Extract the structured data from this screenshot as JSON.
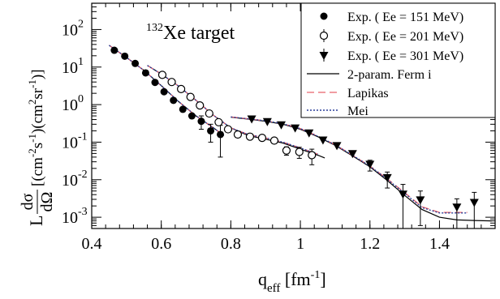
{
  "chart_data": {
    "type": "scatter",
    "annotation": {
      "mass": "132",
      "text": "Xe target"
    },
    "xlabel": {
      "main": "q",
      "sub": "eff",
      "unit_open": " [fm",
      "unit_sup": "-1",
      "unit_close": "]"
    },
    "ylabel": {
      "prefix": "L",
      "frac_num": "dσ",
      "frac_den": "dΩ",
      "p1": " [(cm",
      "s1": "-2",
      "p2": "s",
      "s2": "-1",
      "p3": ")(cm",
      "s3": "2",
      "p4": "sr",
      "s4": "-1",
      "p5": ")]"
    },
    "xlim": [
      0.4,
      1.56
    ],
    "ylim_log10": [
      -3.3,
      2.7
    ],
    "y_scale": "log",
    "x_ticks": [
      {
        "v": 0.4,
        "label": "0.4"
      },
      {
        "v": 0.6,
        "label": "0.6"
      },
      {
        "v": 0.8,
        "label": "0.8"
      },
      {
        "v": 1.0,
        "label": "1"
      },
      {
        "v": 1.2,
        "label": "1.2"
      },
      {
        "v": 1.4,
        "label": "1.4"
      }
    ],
    "y_ticks": [
      {
        "exp": 2,
        "base": "10",
        "sup": "2"
      },
      {
        "exp": 1,
        "base": "10",
        "sup": "1"
      },
      {
        "exp": 0,
        "base": "10",
        "sup": "0"
      },
      {
        "exp": -1,
        "base": "10",
        "sup": "-1"
      },
      {
        "exp": -2,
        "base": "10",
        "sup": "-2"
      },
      {
        "exp": -3,
        "base": "10",
        "sup": "-3"
      }
    ],
    "grid": false,
    "legend_position": "top-right",
    "series": [
      {
        "name": "Exp. ( Ee = 151 MeV)",
        "marker": "filled-circle",
        "points": [
          {
            "x": 0.465,
            "y": 28,
            "err": 0
          },
          {
            "x": 0.495,
            "y": 19.5,
            "err": 0
          },
          {
            "x": 0.525,
            "y": 12.5,
            "err": 0
          },
          {
            "x": 0.555,
            "y": 7.0,
            "err": 0
          },
          {
            "x": 0.582,
            "y": 3.9,
            "err": 0
          },
          {
            "x": 0.608,
            "y": 2.2,
            "err": 0
          },
          {
            "x": 0.635,
            "y": 1.3,
            "err": 0
          },
          {
            "x": 0.662,
            "y": 0.75,
            "err": 0
          },
          {
            "x": 0.688,
            "y": 0.5,
            "err": 0
          },
          {
            "x": 0.715,
            "y": 0.36,
            "err": 0.14
          },
          {
            "x": 0.742,
            "y": 0.2,
            "err": 0.1
          },
          {
            "x": 0.77,
            "y": 0.16,
            "err": 0.12
          }
        ]
      },
      {
        "name": "Exp. ( Ee = 201 MeV)",
        "marker": "open-circle",
        "points": [
          {
            "x": 0.603,
            "y": 6.2,
            "err": 0
          },
          {
            "x": 0.63,
            "y": 4.0,
            "err": 0
          },
          {
            "x": 0.657,
            "y": 2.6,
            "err": 0
          },
          {
            "x": 0.684,
            "y": 1.6,
            "err": 0
          },
          {
            "x": 0.711,
            "y": 0.95,
            "err": 0
          },
          {
            "x": 0.738,
            "y": 0.58,
            "err": 0
          },
          {
            "x": 0.765,
            "y": 0.34,
            "err": 0
          },
          {
            "x": 0.792,
            "y": 0.22,
            "err": 0
          },
          {
            "x": 0.82,
            "y": 0.16,
            "err": 0
          },
          {
            "x": 0.855,
            "y": 0.14,
            "err": 0
          },
          {
            "x": 0.89,
            "y": 0.13,
            "err": 0
          },
          {
            "x": 0.925,
            "y": 0.11,
            "err": 0
          },
          {
            "x": 0.96,
            "y": 0.06,
            "err": 0.015
          },
          {
            "x": 0.997,
            "y": 0.055,
            "err": 0.018
          },
          {
            "x": 1.033,
            "y": 0.045,
            "err": 0.02
          }
        ]
      },
      {
        "name": "Exp. ( Ee = 301 MeV)",
        "marker": "filled-triangle-down",
        "points": [
          {
            "x": 0.86,
            "y": 0.4,
            "err": 0
          },
          {
            "x": 0.905,
            "y": 0.34,
            "err": 0
          },
          {
            "x": 0.945,
            "y": 0.28,
            "err": 0
          },
          {
            "x": 0.985,
            "y": 0.23,
            "err": 0
          },
          {
            "x": 1.025,
            "y": 0.17,
            "err": 0
          },
          {
            "x": 1.065,
            "y": 0.11,
            "err": 0
          },
          {
            "x": 1.105,
            "y": 0.078,
            "err": 0
          },
          {
            "x": 1.15,
            "y": 0.048,
            "err": 0
          },
          {
            "x": 1.2,
            "y": 0.025,
            "err": 0.008
          },
          {
            "x": 1.25,
            "y": 0.011,
            "err": 0.005
          },
          {
            "x": 1.295,
            "y": 0.004,
            "err": 0.0035
          },
          {
            "x": 1.345,
            "y": 0.0028,
            "err": 0.0022
          },
          {
            "x": 1.45,
            "y": 0.0018,
            "err": 0.0013
          },
          {
            "x": 1.5,
            "y": 0.0024,
            "err": 0.0022
          }
        ]
      }
    ],
    "curves": [
      {
        "name": "2-param. Ferm i",
        "color": "#000000",
        "dash": "",
        "segments": [
          [
            [
              0.45,
              38
            ],
            [
              0.5,
              18
            ],
            [
              0.55,
              8.2
            ],
            [
              0.6,
              3.2
            ],
            [
              0.65,
              1.2
            ],
            [
              0.7,
              0.5
            ],
            [
              0.75,
              0.24
            ],
            [
              0.78,
              0.15
            ]
          ],
          [
            [
              0.56,
              11
            ],
            [
              0.6,
              6.5
            ],
            [
              0.65,
              3.1
            ],
            [
              0.7,
              1.3
            ],
            [
              0.75,
              0.52
            ],
            [
              0.8,
              0.24
            ],
            [
              0.85,
              0.15
            ],
            [
              0.9,
              0.12
            ],
            [
              0.95,
              0.095
            ],
            [
              1.0,
              0.065
            ],
            [
              1.05,
              0.045
            ],
            [
              1.07,
              0.038
            ]
          ],
          [
            [
              0.8,
              0.46
            ],
            [
              0.85,
              0.41
            ],
            [
              0.9,
              0.36
            ],
            [
              0.95,
              0.3
            ],
            [
              1.0,
              0.22
            ],
            [
              1.05,
              0.14
            ],
            [
              1.1,
              0.082
            ],
            [
              1.15,
              0.043
            ],
            [
              1.2,
              0.022
            ],
            [
              1.25,
              0.0095
            ],
            [
              1.3,
              0.0038
            ],
            [
              1.35,
              0.0016
            ],
            [
              1.4,
              0.001
            ],
            [
              1.45,
              0.00085
            ],
            [
              1.5,
              0.00082
            ],
            [
              1.55,
              0.0008
            ]
          ]
        ]
      },
      {
        "name": "Lapikas",
        "color": "#e8626a",
        "dash": "9,5",
        "segments": [
          [
            [
              0.45,
              38
            ],
            [
              0.5,
              18
            ],
            [
              0.55,
              8.2
            ],
            [
              0.6,
              3.2
            ],
            [
              0.65,
              1.2
            ],
            [
              0.7,
              0.5
            ],
            [
              0.75,
              0.24
            ],
            [
              0.78,
              0.15
            ]
          ],
          [
            [
              0.56,
              11
            ],
            [
              0.6,
              6.5
            ],
            [
              0.65,
              3.1
            ],
            [
              0.7,
              1.3
            ],
            [
              0.75,
              0.52
            ],
            [
              0.8,
              0.24
            ],
            [
              0.85,
              0.16
            ],
            [
              0.9,
              0.13
            ],
            [
              0.95,
              0.1
            ],
            [
              1.0,
              0.07
            ],
            [
              1.05,
              0.048
            ]
          ],
          [
            [
              0.8,
              0.47
            ],
            [
              0.85,
              0.42
            ],
            [
              0.9,
              0.37
            ],
            [
              0.95,
              0.31
            ],
            [
              1.0,
              0.23
            ],
            [
              1.05,
              0.145
            ],
            [
              1.1,
              0.085
            ],
            [
              1.15,
              0.045
            ],
            [
              1.2,
              0.023
            ],
            [
              1.25,
              0.0105
            ],
            [
              1.3,
              0.0045
            ],
            [
              1.35,
              0.0019
            ],
            [
              1.4,
              0.00135
            ],
            [
              1.45,
              0.00135
            ],
            [
              1.48,
              0.00135
            ]
          ]
        ]
      },
      {
        "name": "Mei",
        "color": "#2a3f9a",
        "dash": "2,2",
        "segments": [
          [
            [
              0.45,
              38
            ],
            [
              0.5,
              18
            ],
            [
              0.55,
              8.2
            ],
            [
              0.6,
              3.2
            ],
            [
              0.65,
              1.2
            ],
            [
              0.7,
              0.5
            ],
            [
              0.75,
              0.24
            ],
            [
              0.78,
              0.15
            ]
          ],
          [
            [
              0.56,
              11
            ],
            [
              0.6,
              6.5
            ],
            [
              0.65,
              3.1
            ],
            [
              0.7,
              1.3
            ],
            [
              0.75,
              0.52
            ],
            [
              0.8,
              0.24
            ],
            [
              0.85,
              0.16
            ],
            [
              0.9,
              0.13
            ],
            [
              0.95,
              0.1
            ],
            [
              1.0,
              0.07
            ],
            [
              1.05,
              0.048
            ]
          ],
          [
            [
              0.8,
              0.47
            ],
            [
              0.85,
              0.42
            ],
            [
              0.9,
              0.37
            ],
            [
              0.95,
              0.31
            ],
            [
              1.0,
              0.23
            ],
            [
              1.05,
              0.145
            ],
            [
              1.1,
              0.085
            ],
            [
              1.15,
              0.045
            ],
            [
              1.2,
              0.023
            ],
            [
              1.25,
              0.0102
            ],
            [
              1.3,
              0.0043
            ],
            [
              1.35,
              0.0018
            ],
            [
              1.4,
              0.0013
            ],
            [
              1.45,
              0.0013
            ],
            [
              1.48,
              0.0013
            ]
          ]
        ]
      }
    ]
  }
}
